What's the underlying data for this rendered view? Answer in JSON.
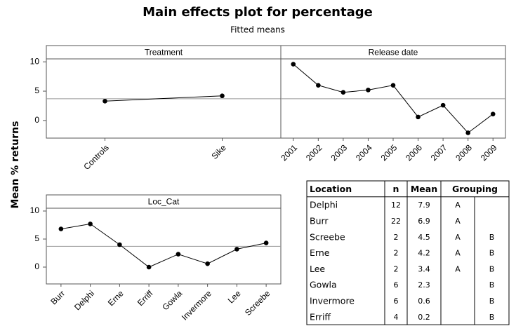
{
  "title": "Main effects plot for percentage",
  "subtitle": "Fitted means",
  "ylabel": "Mean % returns",
  "chart_data": [
    {
      "type": "line",
      "title": "Treatment",
      "categories": [
        "Controls",
        "Sike"
      ],
      "values": [
        3.3,
        4.2
      ],
      "ylim": [
        -3,
        10.5
      ],
      "yticks": [
        0,
        5,
        10
      ],
      "reference_line": 3.7,
      "color": "#000000"
    },
    {
      "type": "line",
      "title": "Release date",
      "categories": [
        "2001",
        "2002",
        "2003",
        "2004",
        "2005",
        "2006",
        "2007",
        "2008",
        "2009"
      ],
      "values": [
        9.6,
        6.0,
        4.8,
        5.2,
        6.0,
        0.6,
        2.6,
        -2.1,
        1.1
      ],
      "ylim": [
        -3,
        10.5
      ],
      "reference_line": 3.7,
      "color": "#000000"
    },
    {
      "type": "line",
      "title": "Loc_Cat",
      "categories": [
        "Burr",
        "Delphi",
        "Erne",
        "Erriff",
        "Gowla",
        "Invermore",
        "Lee",
        "Screebe"
      ],
      "values": [
        6.8,
        7.7,
        4.0,
        0.0,
        2.3,
        0.6,
        3.2,
        4.3
      ],
      "ylim": [
        -3,
        10.5
      ],
      "yticks": [
        0,
        5,
        10
      ],
      "reference_line": 3.7,
      "color": "#000000"
    }
  ],
  "table": {
    "header": [
      "Location",
      "n",
      "Mean",
      "Grouping"
    ],
    "rows": [
      [
        "Delphi",
        12,
        7.9,
        "A",
        null
      ],
      [
        "Burr",
        22,
        6.9,
        "A",
        null
      ],
      [
        "Screebe",
        2,
        4.5,
        "A",
        "B"
      ],
      [
        "Erne",
        2,
        4.2,
        "A",
        "B"
      ],
      [
        "Lee",
        2,
        3.4,
        "A",
        "B"
      ],
      [
        "Gowla",
        6,
        2.3,
        null,
        "B"
      ],
      [
        "Invermore",
        6,
        0.6,
        null,
        "B"
      ],
      [
        "Erriff",
        4,
        0.2,
        null,
        "B"
      ]
    ]
  }
}
